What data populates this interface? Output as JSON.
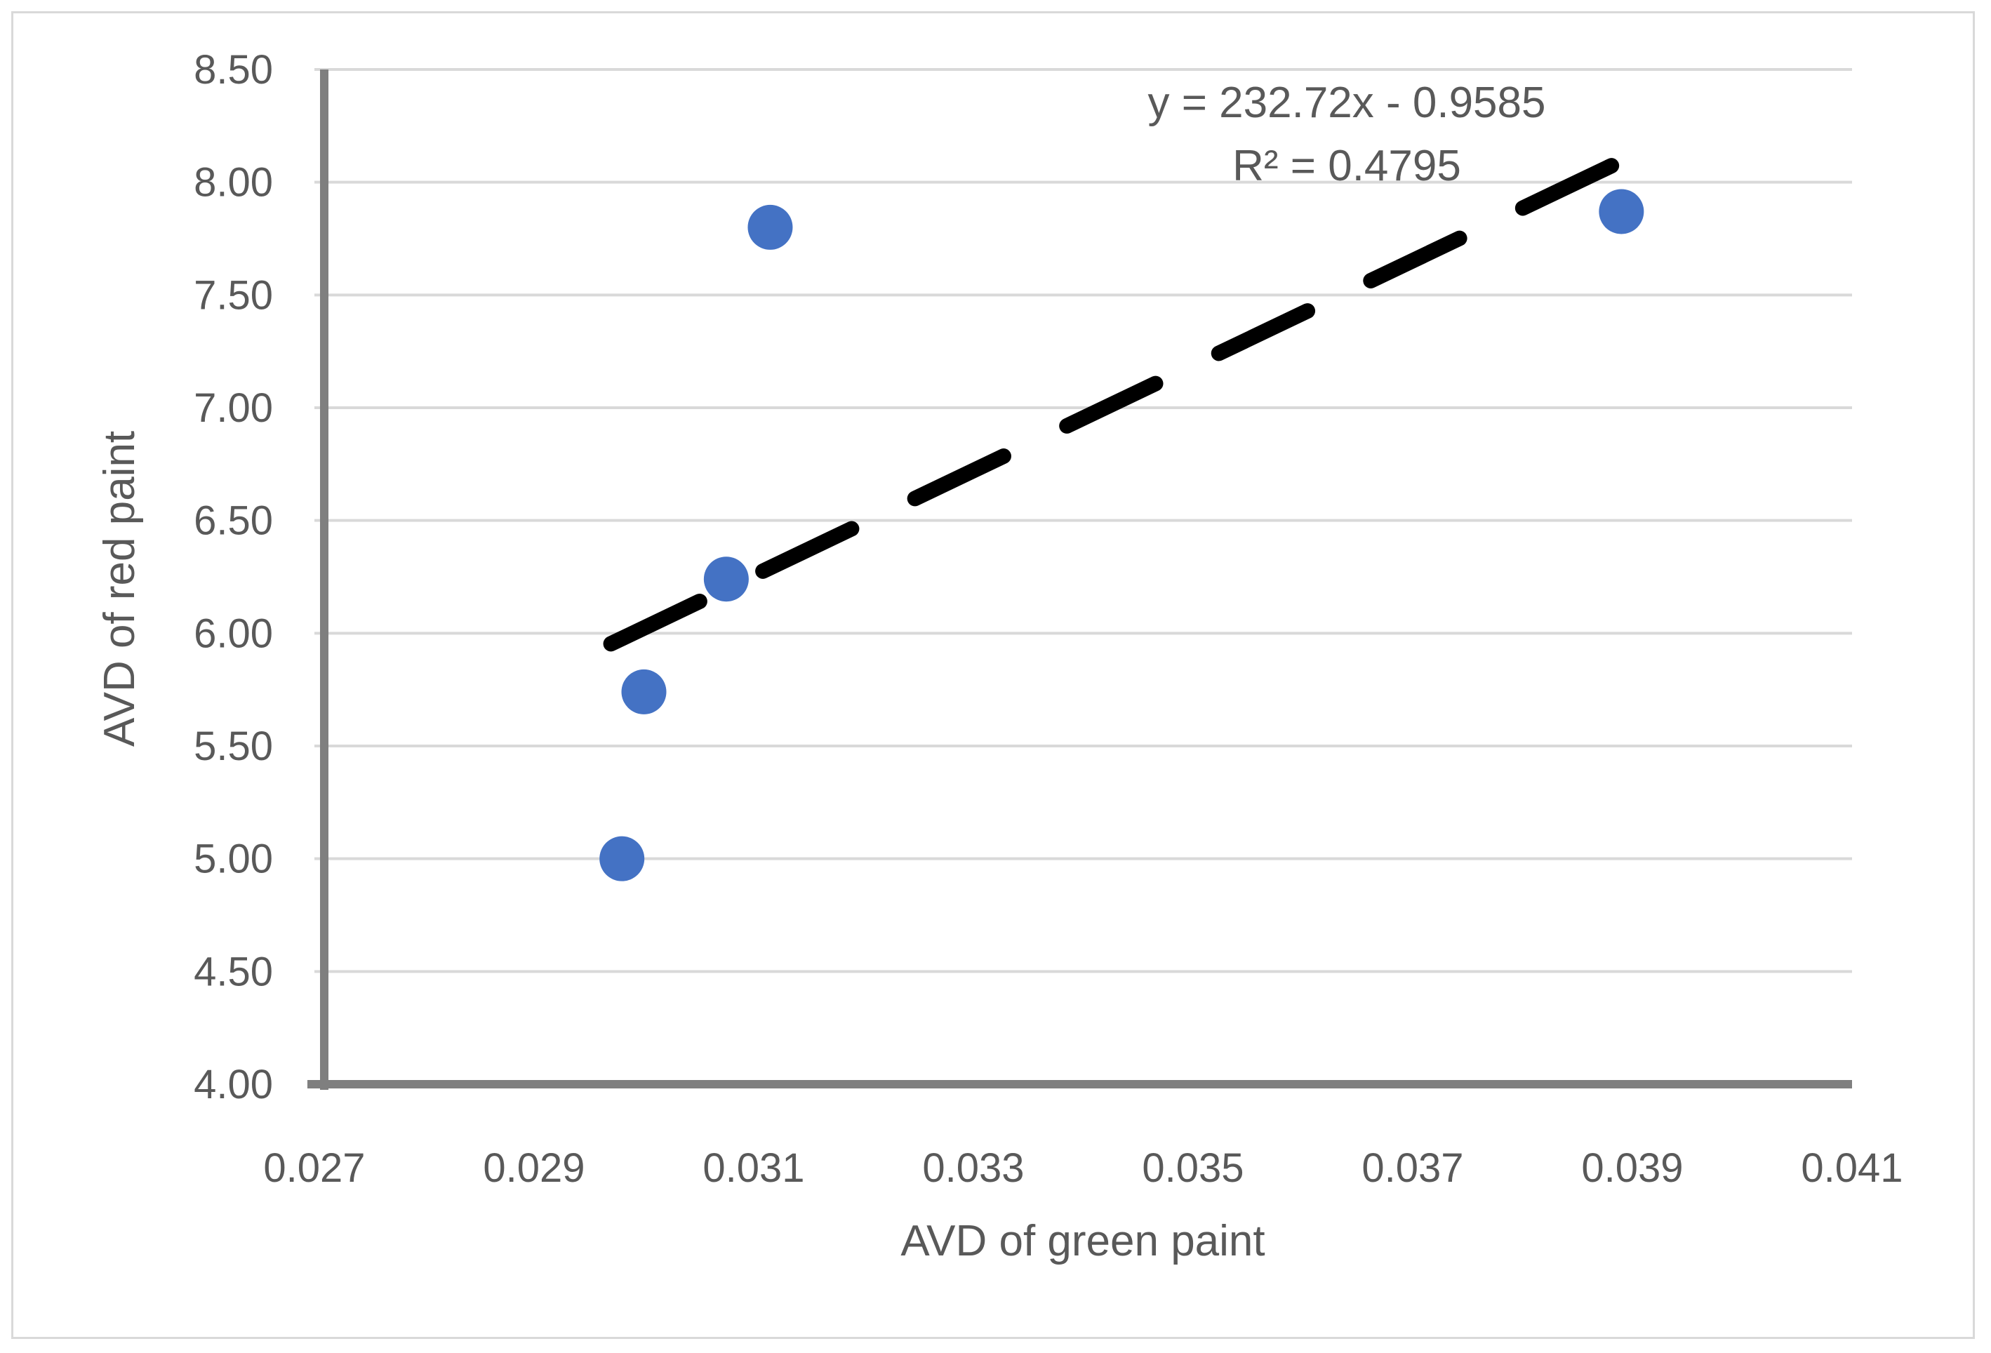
{
  "chart_data": {
    "type": "scatter",
    "title": "",
    "xlabel": "AVD of green paint",
    "ylabel": "AVD of red paint",
    "xlim": [
      0.027,
      0.041
    ],
    "ylim": [
      4.0,
      8.5
    ],
    "x_ticks": [
      "0.027",
      "0.029",
      "0.031",
      "0.033",
      "0.035",
      "0.037",
      "0.039",
      "0.041"
    ],
    "y_ticks": [
      "4.00",
      "4.50",
      "5.00",
      "5.50",
      "6.00",
      "6.50",
      "7.00",
      "7.50",
      "8.00",
      "8.50"
    ],
    "grid": "horizontal",
    "legend": "none",
    "series": [
      {
        "color": "#4472c4",
        "points": [
          {
            "x": 0.0298,
            "y": 5.0
          },
          {
            "x": 0.03,
            "y": 5.74
          },
          {
            "x": 0.03075,
            "y": 6.24
          },
          {
            "x": 0.03115,
            "y": 7.8
          },
          {
            "x": 0.0389,
            "y": 7.87
          }
        ]
      }
    ],
    "trendline": {
      "type": "linear",
      "style": "dashed",
      "color": "#000000",
      "x_range": [
        0.0297,
        0.0389
      ],
      "slope": 232.72,
      "intercept": -0.9585,
      "equation": "y = 232.72x - 0.9585",
      "r_squared": "R² = 0.4795"
    }
  }
}
